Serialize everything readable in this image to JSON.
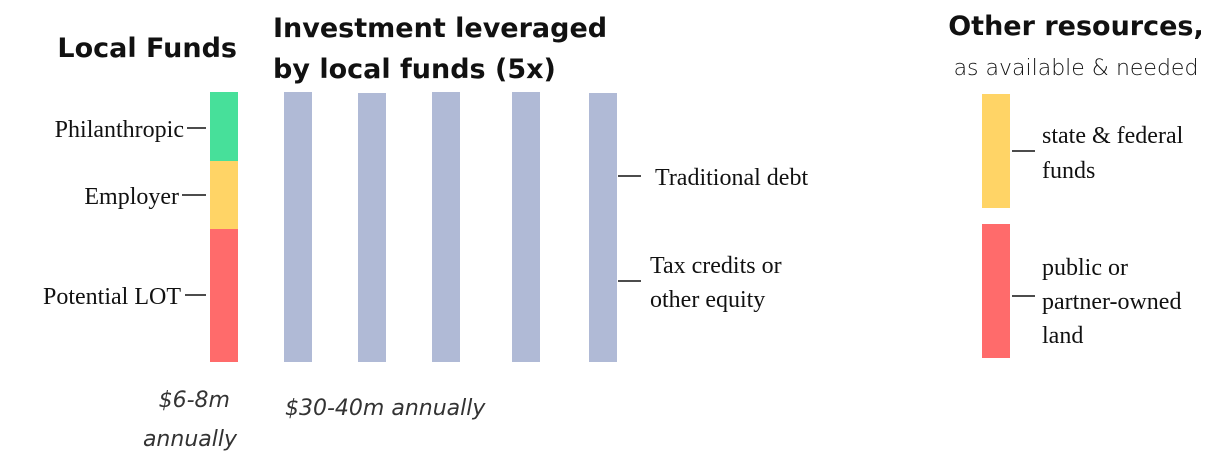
{
  "local_funds": {
    "title": "Local Funds",
    "segments": [
      {
        "label": "Philanthropic"
      },
      {
        "label": "Employer"
      },
      {
        "label": "Potential LOT"
      }
    ],
    "amount_lines": [
      "$6-8m",
      "annually"
    ]
  },
  "investment": {
    "title_lines": [
      "Investment leveraged",
      "by local funds (5x)"
    ],
    "amount": "$30-40m annually",
    "labels": [
      {
        "lines": [
          "Traditional debt"
        ]
      },
      {
        "lines": [
          "Tax credits or",
          "other equity"
        ]
      }
    ]
  },
  "other_resources": {
    "title": "Other resources,",
    "subtitle": "as available & needed",
    "items": [
      {
        "lines": [
          "state & federal",
          "funds"
        ]
      },
      {
        "lines": [
          "public or",
          "partner-owned",
          "land"
        ]
      }
    ]
  }
}
